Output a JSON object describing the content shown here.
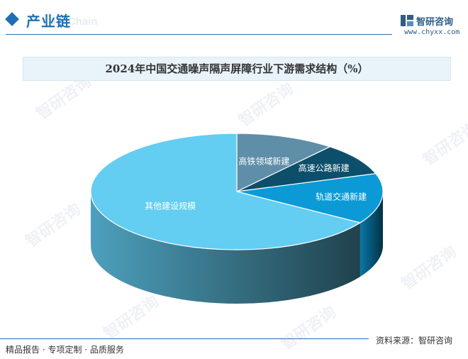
{
  "header": {
    "section_title": "产业链",
    "section_subtitle": "ial Chain"
  },
  "logo": {
    "name": "智研咨询",
    "url": "www.chyxx.com"
  },
  "watermark_text": "智研咨询",
  "chart_data": {
    "type": "pie",
    "title": "2024年中国交通噪声隔声屏障行业下游需求结构（%）",
    "slices": [
      {
        "label": "高铁领域新建",
        "value": 11,
        "color": "#5f8ea8"
      },
      {
        "label": "高速公路新建",
        "value": 9,
        "color": "#0d4f6b"
      },
      {
        "label": "轨道交通新建",
        "value": 14,
        "color": "#0b9ad6"
      },
      {
        "label": "其他建设规模",
        "value": 66,
        "color": "#63cdf2"
      }
    ],
    "start_angle_deg": 0,
    "direction": "clockwise"
  },
  "footer": {
    "left": "精品报告 · 专项定制 · 品质服务",
    "right": "资料来源：智研咨询"
  }
}
